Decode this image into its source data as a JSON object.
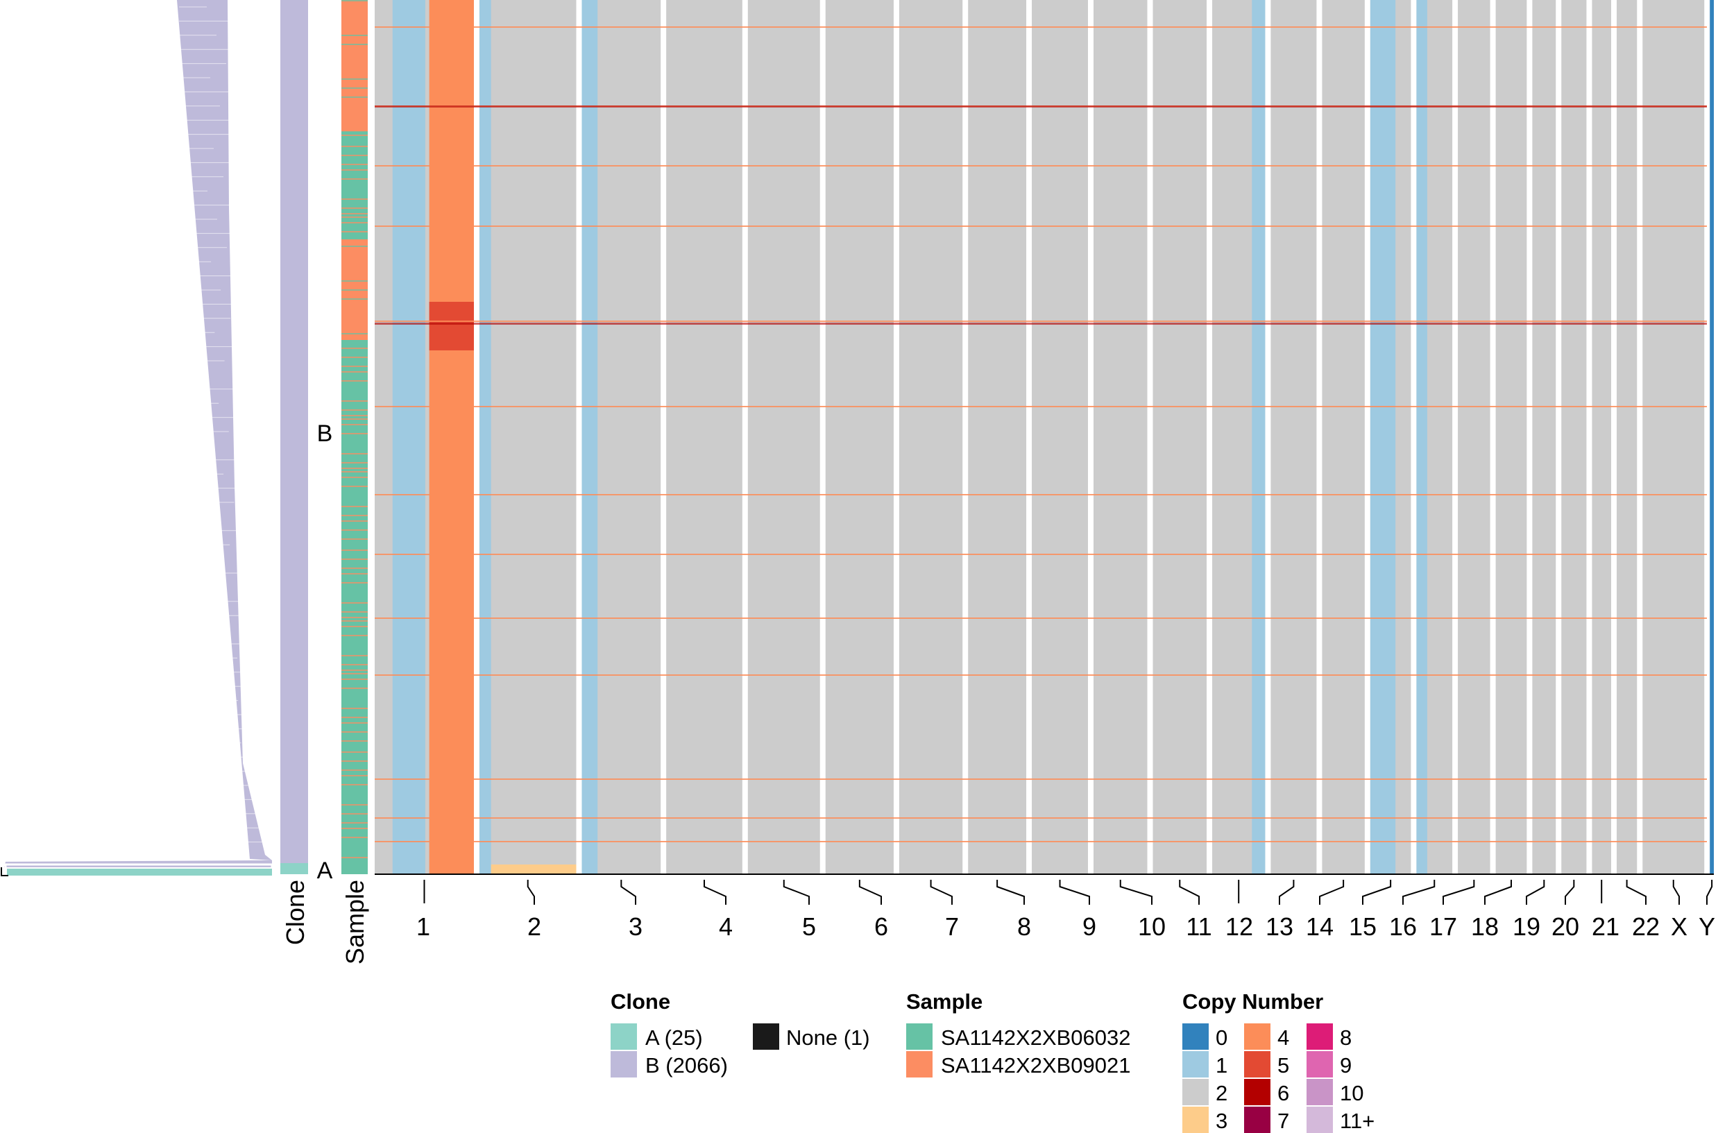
{
  "figure": {
    "type": "single-cell copy number heatmap with phylogeny",
    "track_labels": {
      "clone": "Clone",
      "sample": "Sample"
    },
    "clone_row_labels": [
      "B",
      "A"
    ]
  },
  "colors": {
    "clone_A": "#8DD3C7",
    "clone_B": "#BEBADA",
    "none": "#1a1a1a",
    "sample_1": "#66C2A5",
    "sample_2": "#FC8D62",
    "cn0": "#3182BD",
    "cn1": "#9ECAE1",
    "cn2": "#CCCCCC",
    "cn3": "#FDCC8A",
    "cn4": "#FC8D59",
    "cn5": "#E34A33",
    "cn6": "#B30000",
    "cn7": "#980043",
    "cn8": "#DD1C77",
    "cn9": "#DF65B0",
    "cn10": "#C994C7",
    "cn11": "#D4B9DA"
  },
  "chromosomes": [
    {
      "label": "1",
      "weight": 249
    },
    {
      "label": "2",
      "weight": 243
    },
    {
      "label": "3",
      "weight": 198
    },
    {
      "label": "4",
      "weight": 191
    },
    {
      "label": "5",
      "weight": 181
    },
    {
      "label": "6",
      "weight": 171
    },
    {
      "label": "7",
      "weight": 159
    },
    {
      "label": "8",
      "weight": 146
    },
    {
      "label": "9",
      "weight": 141
    },
    {
      "label": "10",
      "weight": 135
    },
    {
      "label": "11",
      "weight": 135
    },
    {
      "label": "12",
      "weight": 133
    },
    {
      "label": "13",
      "weight": 115
    },
    {
      "label": "14",
      "weight": 107
    },
    {
      "label": "15",
      "weight": 102
    },
    {
      "label": "16",
      "weight": 90
    },
    {
      "label": "17",
      "weight": 81
    },
    {
      "label": "18",
      "weight": 78
    },
    {
      "label": "19",
      "weight": 59
    },
    {
      "label": "20",
      "weight": 63
    },
    {
      "label": "21",
      "weight": 48
    },
    {
      "label": "22",
      "weight": 51
    },
    {
      "label": "X",
      "weight": 155
    },
    {
      "label": "Y",
      "weight": 10
    }
  ],
  "legend": {
    "clone": {
      "title": "Clone",
      "items": [
        {
          "label": "A (25)",
          "color_key": "clone_A"
        },
        {
          "label": "B (2066)",
          "color_key": "clone_B"
        },
        {
          "label": "None (1)",
          "color_key": "none"
        }
      ]
    },
    "sample": {
      "title": "Sample",
      "items": [
        {
          "label": "SA1142X2XB06032",
          "color_key": "sample_1"
        },
        {
          "label": "SA1142X2XB09021",
          "color_key": "sample_2"
        }
      ]
    },
    "copy_number": {
      "title": "Copy Number",
      "items": [
        {
          "label": "0",
          "color_key": "cn0"
        },
        {
          "label": "1",
          "color_key": "cn1"
        },
        {
          "label": "2",
          "color_key": "cn2"
        },
        {
          "label": "3",
          "color_key": "cn3"
        },
        {
          "label": "4",
          "color_key": "cn4"
        },
        {
          "label": "5",
          "color_key": "cn5"
        },
        {
          "label": "6",
          "color_key": "cn6"
        },
        {
          "label": "7",
          "color_key": "cn7"
        },
        {
          "label": "8",
          "color_key": "cn8"
        },
        {
          "label": "9",
          "color_key": "cn9"
        },
        {
          "label": "10",
          "color_key": "cn10"
        },
        {
          "label": "11+",
          "color_key": "cn11"
        }
      ]
    }
  }
}
